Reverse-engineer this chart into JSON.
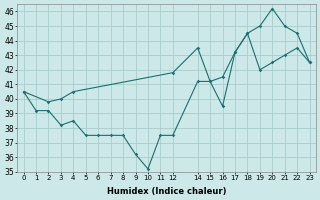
{
  "xlabel": "Humidex (Indice chaleur)",
  "bg_color": "#cce8e8",
  "grid_color": "#aacccc",
  "line_color": "#1a7070",
  "xlim": [
    -0.5,
    23.5
  ],
  "ylim": [
    35,
    46.5
  ],
  "yticks": [
    35,
    36,
    37,
    38,
    39,
    40,
    41,
    42,
    43,
    44,
    45,
    46
  ],
  "xticks": [
    0,
    1,
    2,
    3,
    4,
    5,
    6,
    7,
    8,
    9,
    10,
    11,
    12,
    14,
    15,
    16,
    17,
    18,
    19,
    20,
    21,
    22,
    23
  ],
  "series1_x": [
    0,
    1,
    2,
    3,
    4,
    5,
    6,
    7,
    8,
    9,
    10,
    11,
    12,
    14,
    15,
    16,
    17,
    18,
    19,
    20,
    21,
    22,
    23
  ],
  "series1_y": [
    40.5,
    39.2,
    39.2,
    38.2,
    38.5,
    37.5,
    37.5,
    37.5,
    37.5,
    36.2,
    35.2,
    37.5,
    37.5,
    41.2,
    41.2,
    39.5,
    43.2,
    44.5,
    45.0,
    46.2,
    45.0,
    44.5,
    42.5
  ],
  "series2_x": [
    0,
    2,
    3,
    4,
    12,
    14,
    15,
    16,
    17,
    18,
    19,
    20,
    21,
    22,
    23
  ],
  "series2_y": [
    40.5,
    39.8,
    40.0,
    40.5,
    41.8,
    43.5,
    41.2,
    41.5,
    43.2,
    44.5,
    42.0,
    42.5,
    43.0,
    43.5,
    42.5
  ]
}
